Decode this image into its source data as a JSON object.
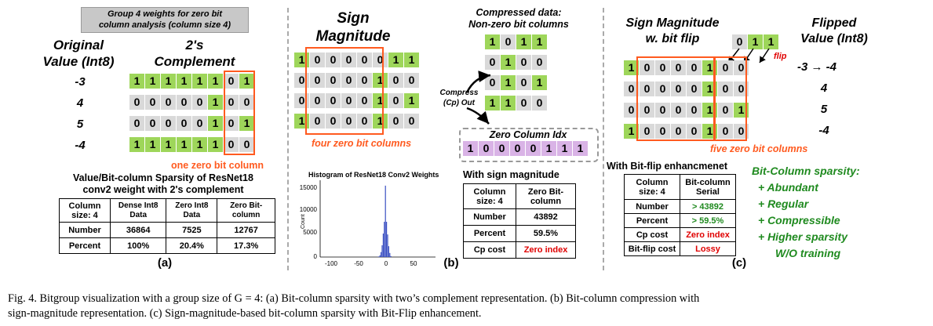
{
  "panel_a": {
    "group_title_1": "Group 4 weights for zero bit",
    "group_title_2": "column analysis (column size 4)",
    "orig_label_1": "Original",
    "orig_label_2": "Value (Int8)",
    "comp_label_1": "2's",
    "comp_label_2": "Complement",
    "values": [
      "-3",
      "4",
      "5",
      "-4"
    ],
    "bits": [
      [
        "1",
        "1",
        "1",
        "1",
        "1",
        "1",
        "0",
        "1"
      ],
      [
        "0",
        "0",
        "0",
        "0",
        "0",
        "1",
        "0",
        "0"
      ],
      [
        "0",
        "0",
        "0",
        "0",
        "0",
        "1",
        "0",
        "1"
      ],
      [
        "1",
        "1",
        "1",
        "1",
        "1",
        "1",
        "0",
        "0"
      ]
    ],
    "note": "one zero bit column",
    "table_title_1": "Value/Bit-column Sparsity of ResNet18",
    "table_title_2": "conv2 weight with 2's complement",
    "table_header": [
      "Column size: 4",
      "Dense Int8 Data",
      "Zero Int8 Data",
      "Zero Bit-column"
    ],
    "table_rows": [
      [
        "Number",
        "36864",
        "7525",
        "12767"
      ],
      [
        "Percent",
        "100%",
        "20.4%",
        "17.3%"
      ]
    ],
    "caption_label": "(a)"
  },
  "panel_b": {
    "title_1": "Sign",
    "title_2": "Magnitude",
    "bits": [
      [
        "1",
        "0",
        "0",
        "0",
        "0",
        "0",
        "1",
        "1"
      ],
      [
        "0",
        "0",
        "0",
        "0",
        "0",
        "1",
        "0",
        "0"
      ],
      [
        "0",
        "0",
        "0",
        "0",
        "0",
        "1",
        "0",
        "1"
      ],
      [
        "1",
        "0",
        "0",
        "0",
        "0",
        "1",
        "0",
        "0"
      ]
    ],
    "note": "four zero bit columns",
    "compressed_title_1": "Compressed data:",
    "compressed_title_2": "Non-zero bit columns",
    "compressed_bits": [
      [
        "1",
        "0",
        "1",
        "1"
      ],
      [
        "0",
        "1",
        "0",
        "0"
      ],
      [
        "0",
        "1",
        "0",
        "1"
      ],
      [
        "1",
        "1",
        "0",
        "0"
      ]
    ],
    "compress_label_1": "Compress",
    "compress_label_2": "(Cp) Out",
    "zero_idx_title": "Zero Column Idx",
    "zero_idx_bits": [
      "1",
      "0",
      "0",
      "0",
      "0",
      "1",
      "1",
      "1"
    ],
    "hist_title": "Histogram of ResNet18 Conv2 Weights",
    "hist_ylabel": "Count",
    "hist_yticks": [
      "15000",
      "10000",
      "5000",
      "0"
    ],
    "hist_xticks": [
      "-100",
      "-50",
      "0",
      "50"
    ],
    "table_title": "With sign magnitude",
    "table_header": [
      "Column size: 4",
      "Zero Bit-column"
    ],
    "table_rows": [
      [
        "Number",
        "43892"
      ],
      [
        "Percent",
        "59.5%"
      ],
      [
        "Cp cost",
        "Zero index"
      ]
    ],
    "caption_label": "(b)"
  },
  "panel_c": {
    "title_1": "Sign Magnitude",
    "title_2": "w. bit flip",
    "flip_bits": [
      "0",
      "1",
      "1"
    ],
    "flip_label": "flip",
    "flipped_label_1": "Flipped",
    "flipped_label_2": "Value (Int8)",
    "flipped_values": [
      "-3 → -4",
      "4",
      "5",
      "-4"
    ],
    "bits": [
      [
        "1",
        "0",
        "0",
        "0",
        "0",
        "1",
        "0",
        "0"
      ],
      [
        "0",
        "0",
        "0",
        "0",
        "0",
        "1",
        "0",
        "0"
      ],
      [
        "0",
        "0",
        "0",
        "0",
        "0",
        "1",
        "0",
        "1"
      ],
      [
        "1",
        "0",
        "0",
        "0",
        "0",
        "1",
        "0",
        "0"
      ]
    ],
    "note": "five zero bit columns",
    "table_title": "With Bit-flip enhancmenet",
    "table_header": [
      "Column size: 4",
      "Bit-column Serial"
    ],
    "table_rows": [
      [
        "Number",
        "> 43892"
      ],
      [
        "Percent",
        "> 59.5%"
      ],
      [
        "Cp cost",
        "Zero index"
      ],
      [
        "Bit-flip cost",
        "Lossy"
      ]
    ],
    "sparsity_title": "Bit-Column sparsity:",
    "sparsity_items": [
      "+ Abundant",
      "+ Regular",
      "+ Compressible",
      "+ Higher sparsity",
      "W/O training"
    ],
    "caption_label": "(c)"
  },
  "figure_caption_1": "Fig. 4.   Bitgroup visualization with a group size of G = 4: (a) Bit-column sparsity with two’s complement representation. (b) Bit-column compression with",
  "figure_caption_2": "sign-magnitude representation. (c) Sign-magnitude-based bit-column sparsity with Bit-Flip enhancement.",
  "hist_data": {
    "bins": [
      -15,
      -13,
      -11,
      -9,
      -7,
      -5,
      -3,
      -1,
      1,
      3,
      5,
      7,
      9
    ],
    "counts": [
      40,
      120,
      400,
      1100,
      2600,
      5200,
      7800,
      15800,
      7800,
      5000,
      2400,
      900,
      200
    ]
  }
}
